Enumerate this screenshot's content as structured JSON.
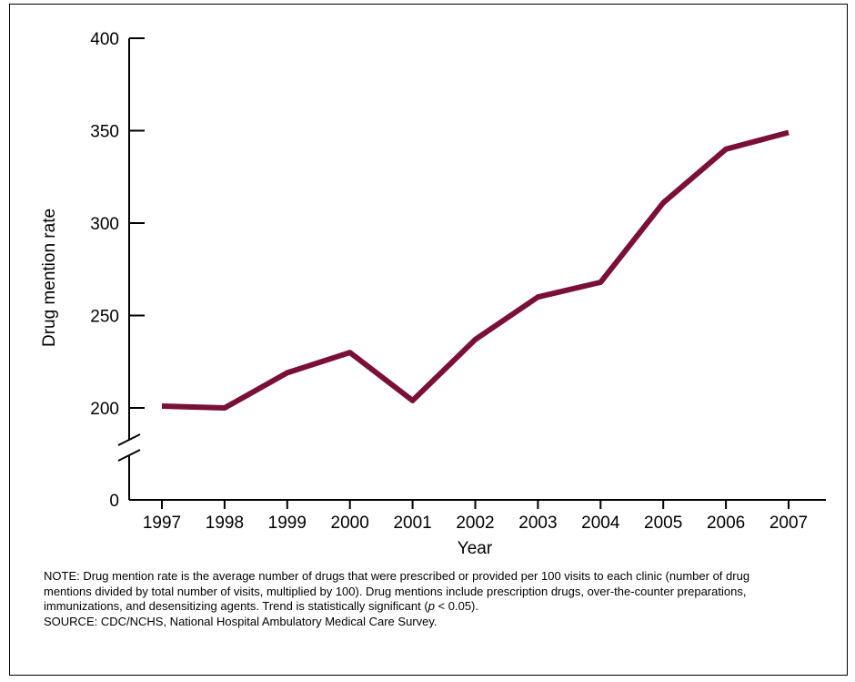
{
  "chart_data": {
    "type": "line",
    "x": [
      "1997",
      "1998",
      "1999",
      "2000",
      "2001",
      "2002",
      "2003",
      "2004",
      "2005",
      "2006",
      "2007"
    ],
    "series": [
      {
        "values": [
          201,
          200,
          219,
          230,
          204,
          237,
          260,
          268,
          311,
          340,
          349
        ],
        "color": "#7a0f37"
      }
    ],
    "xlabel": "Year",
    "ylabel": "Drug mention rate",
    "yticks": [
      0,
      200,
      250,
      300,
      350,
      400
    ],
    "ylim": [
      175,
      400
    ],
    "axis_break": true,
    "grid": false
  },
  "notes": {
    "note_before_p": "NOTE: Drug mention rate is the average number of drugs that were prescribed or provided per 100 visits to each clinic (number of drug mentions divided by total number of visits, multiplied by 100).   Drug mentions include prescription drugs, over-the-counter preparations, immunizations, and desensitizing agents. Trend is statistically significant (",
    "p_symbol": "p",
    "note_after_p": " < 0.05).",
    "source": "SOURCE: CDC/NCHS, National Hospital Ambulatory Medical Care Survey."
  }
}
